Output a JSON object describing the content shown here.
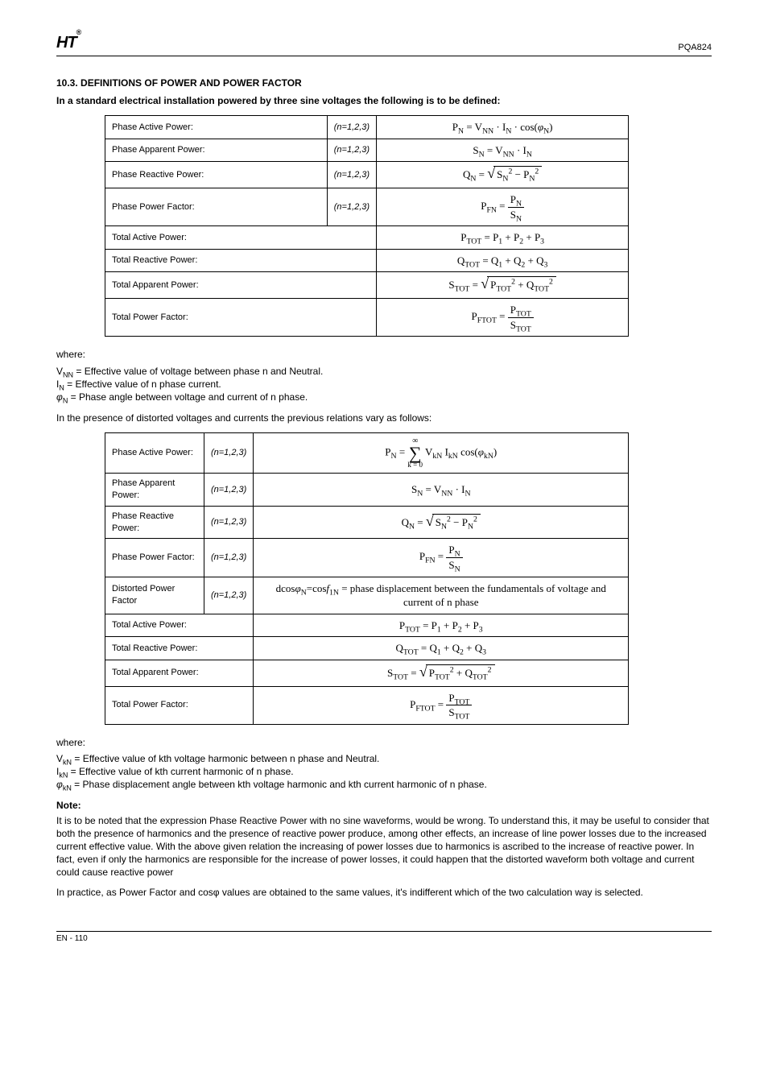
{
  "header": {
    "logo_text": "HT",
    "logo_reg": "®",
    "model": "PQA824"
  },
  "section": {
    "number": "10.3.",
    "title": "DEFINITIONS OF POWER AND POWER FACTOR"
  },
  "intro": "In a standard electrical installation powered by three sine voltages the following is to be defined:",
  "where_label": "where:",
  "note": {
    "label": "Note:",
    "body": "It is to be noted that the expression Phase Reactive Power with no sine waveforms, would be wrong. To understand this, it may be useful to consider that both the presence of harmonics and the presence of reactive power produce, among other effects, an increase of line power losses due to the increased current effective value. With the above given relation the increasing of power losses due to harmonics is ascribed to the increase of reactive power. In fact, even if only the harmonics are responsible for the increase of power losses, it could happen that the distorted waveform both voltage and current could cause reactive power",
    "body2": "In practice, as Power Factor and cosφ values are obtained to the same values, it's indifferent which of the two calculation way is selected."
  },
  "table1": {
    "title_fontsize": 11,
    "rows": [
      {
        "label": "Phase Active Power:",
        "sym": "<i>(n=1,2,3)</i>",
        "eq": "P<sub>N</sub> = V<sub>NN</sub> · I<sub>N</sub> · cos(<i>φ</i><sub>N</sub>)"
      },
      {
        "label": "Phase Apparent Power:",
        "sym": "<i>(n=1,2,3)</i>",
        "eq": "S<sub>N</sub> = V<sub>NN</sub> · I<sub>N</sub>"
      },
      {
        "label": "Phase Reactive Power:",
        "sym": "<i>(n=1,2,3)</i>",
        "eq_sqrt": {
          "left": "Q<sub>N</sub> = ",
          "body": "S<sub>N</sub><sup>2</sup> − P<sub>N</sub><sup>2</sup>"
        }
      },
      {
        "label": "Phase Power Factor:",
        "sym": "<i>(n=1,2,3)</i>",
        "eq_frac": {
          "left": "P<sub>FN</sub> = ",
          "num": "P<sub>N</sub>",
          "den": "S<sub>N</sub>"
        }
      },
      {
        "label": "Total Active Power:",
        "sym": "",
        "eq": "P<sub>TOT</sub> = P<sub>1</sub> + P<sub>2</sub> + P<sub>3</sub>"
      },
      {
        "label": "Total Reactive Power:",
        "sym": "",
        "eq": "Q<sub>TOT</sub> = Q<sub>1</sub> + Q<sub>2</sub> + Q<sub>3</sub>"
      },
      {
        "label": "Total Apparent Power:",
        "sym": "",
        "eq_sqrt": {
          "left": "S<sub>TOT</sub> = ",
          "body": "P<sub>TOT</sub><sup>2</sup> + Q<sub>TOT</sub><sup>2</sup>"
        }
      },
      {
        "label": "Total Power Factor:",
        "sym": "",
        "eq_frac": {
          "left": "P<sub>FTOT</sub> = ",
          "num": "P<sub>TOT</sub>",
          "den": "S<sub>TOT</sub>"
        }
      }
    ]
  },
  "where1": [
    "V<sub>NN</sub> = Effective value of voltage between phase n and Neutral.",
    "I<sub>N</sub>   = Effective value of n phase current.",
    "<i>φ</i><sub>N</sub>  = Phase angle between voltage and current of n phase."
  ],
  "mid_para": "In the presence of distorted voltages and currents the previous relations vary as follows:",
  "table2": {
    "rows": [
      {
        "label": "Phase Active Power:",
        "sym": "<i>(n=1,2,3)</i>",
        "eq_sum": {
          "left": "P<sub>N</sub> = ",
          "top": "∞",
          "bot": "k = 0",
          "body": "V<sub>kN</sub> I<sub>kN</sub> cos(<i>φ</i><sub>kN</sub>)"
        }
      },
      {
        "label": "Phase Apparent Power:",
        "sym": "<i>(n=1,2,3)</i>",
        "eq": "S<sub>N</sub> = V<sub>NN</sub> · I<sub>N</sub>"
      },
      {
        "label": "Phase Reactive Power:",
        "sym": "<i>(n=1,2,3)</i>",
        "eq_sqrt": {
          "left": "Q<sub>N</sub> = ",
          "body": "S<sub>N</sub><sup>2</sup> − P<sub>N</sub><sup>2</sup>"
        }
      },
      {
        "label": "Phase Power Factor:",
        "sym": "<i>(n=1,2,3)</i>",
        "eq_frac": {
          "left": "P<sub>FN</sub> = ",
          "num": "P<sub>N</sub>",
          "den": "S<sub>N</sub>"
        }
      },
      {
        "label": "Distorted Power Factor",
        "sym": "<i>(n=1,2,3)</i>",
        "eq_plain": "dcos<i>φ</i><sub>N</sub>=cos<i>f</i><sub>1N</sub> = phase displacement between the fundamentals of voltage and current of n phase"
      },
      {
        "label": "Total Active Power:",
        "sym": "",
        "eq": "P<sub>TOT</sub> = P<sub>1</sub> + P<sub>2</sub> + P<sub>3</sub>"
      },
      {
        "label": "Total Reactive Power:",
        "sym": "",
        "eq": "Q<sub>TOT</sub> = Q<sub>1</sub> + Q<sub>2</sub> + Q<sub>3</sub>"
      },
      {
        "label": "Total Apparent Power:",
        "sym": "",
        "eq_sqrt": {
          "left": "S<sub>TOT</sub> = ",
          "body": "P<sub>TOT</sub><sup>2</sup> + Q<sub>TOT</sub><sup>2</sup>"
        }
      },
      {
        "label": "Total Power Factor:",
        "sym": "",
        "eq_frac": {
          "left": "P<sub>FTOT</sub> = ",
          "num": "P<sub>TOT</sub>",
          "den": "S<sub>TOT</sub>"
        }
      }
    ]
  },
  "where2": [
    "V<sub>kN</sub> = Effective value of kth voltage harmonic between n phase and Neutral.",
    "I<sub>kN</sub>   = Effective value of kth current harmonic of n phase.",
    "<i>φ</i><sub>kN</sub> = Phase displacement angle between kth voltage harmonic and kth current harmonic of n phase."
  ],
  "footer": {
    "left": "EN - 110",
    "right": ""
  }
}
